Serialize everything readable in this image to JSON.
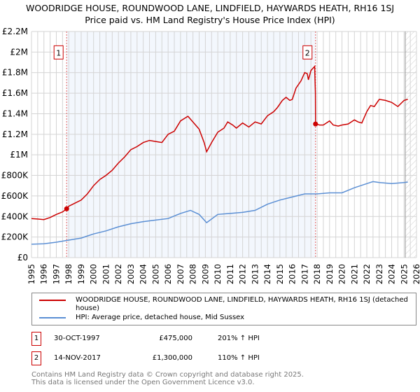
{
  "title": {
    "line1": "WOODRIDGE HOUSE, ROUNDWOOD LANE, LINDFIELD, HAYWARDS HEATH, RH16 1SJ",
    "line2": "Price paid vs. HM Land Registry's House Price Index (HPI)"
  },
  "chart_data": {
    "type": "line",
    "xlim": [
      1995,
      2026
    ],
    "ylim": [
      0,
      2200000
    ],
    "x_ticks": [
      "1995",
      "1996",
      "1997",
      "1998",
      "1999",
      "2000",
      "2001",
      "2002",
      "2003",
      "2004",
      "2005",
      "2006",
      "2007",
      "2008",
      "2009",
      "2010",
      "2011",
      "2012",
      "2013",
      "2014",
      "2015",
      "2016",
      "2017",
      "2018",
      "2019",
      "2020",
      "2021",
      "2022",
      "2023",
      "2024",
      "2025",
      "2026"
    ],
    "y_ticks": [
      {
        "v": 0,
        "label": "£0"
      },
      {
        "v": 200000,
        "label": "£200K"
      },
      {
        "v": 400000,
        "label": "£400K"
      },
      {
        "v": 600000,
        "label": "£600K"
      },
      {
        "v": 800000,
        "label": "£800K"
      },
      {
        "v": 1000000,
        "label": "£1M"
      },
      {
        "v": 1200000,
        "label": "£1.2M"
      },
      {
        "v": 1400000,
        "label": "£1.4M"
      },
      {
        "v": 1600000,
        "label": "£1.6M"
      },
      {
        "v": 1800000,
        "label": "£1.8M"
      },
      {
        "v": 2000000,
        "label": "£2M"
      },
      {
        "v": 2200000,
        "label": "£2.2M"
      }
    ],
    "shaded_range": [
      1997.83,
      2017.87
    ],
    "forecast_from": 2025.1,
    "series": [
      {
        "name": "WOODRIDGE HOUSE, ROUNDWOOD LANE, LINDFIELD, HAYWARDS HEATH, RH16 1SJ (detached house)",
        "color": "#cc0000",
        "x": [
          1995,
          1995.5,
          1996,
          1996.5,
          1997,
          1997.5,
          1997.83,
          1998,
          1998.5,
          1999,
          1999.5,
          2000,
          2000.5,
          2001,
          2001.5,
          2002,
          2002.5,
          2003,
          2003.5,
          2004,
          2004.5,
          2005,
          2005.5,
          2006,
          2006.5,
          2007,
          2007.6,
          2008,
          2008.5,
          2008.9,
          2009.1,
          2009.5,
          2010,
          2010.5,
          2010.8,
          2011.2,
          2011.5,
          2012,
          2012.5,
          2013,
          2013.5,
          2014,
          2014.5,
          2014.8,
          2015.2,
          2015.5,
          2015.8,
          2016,
          2016.3,
          2016.7,
          2017,
          2017.2,
          2017.3,
          2017.5,
          2017.8,
          2017.86,
          2017.87,
          2018.2,
          2018.5,
          2019,
          2019.3,
          2019.7,
          2020,
          2020.5,
          2021,
          2021.3,
          2021.6,
          2022,
          2022.3,
          2022.6,
          2023,
          2023.5,
          2024,
          2024.5,
          2025,
          2025.3
        ],
        "y": [
          380000,
          375000,
          370000,
          390000,
          420000,
          445000,
          475000,
          500000,
          530000,
          560000,
          620000,
          700000,
          760000,
          800000,
          850000,
          920000,
          980000,
          1050000,
          1080000,
          1120000,
          1140000,
          1130000,
          1120000,
          1200000,
          1230000,
          1330000,
          1375000,
          1320000,
          1250000,
          1120000,
          1030000,
          1120000,
          1220000,
          1260000,
          1320000,
          1290000,
          1260000,
          1310000,
          1270000,
          1320000,
          1300000,
          1380000,
          1420000,
          1460000,
          1530000,
          1560000,
          1530000,
          1540000,
          1650000,
          1720000,
          1800000,
          1790000,
          1730000,
          1820000,
          1860000,
          1600000,
          1300000,
          1290000,
          1290000,
          1330000,
          1290000,
          1280000,
          1290000,
          1300000,
          1340000,
          1320000,
          1310000,
          1420000,
          1480000,
          1470000,
          1540000,
          1530000,
          1510000,
          1470000,
          1530000,
          1540000
        ]
      },
      {
        "name": "HPI: Average price, detached house, Mid Sussex",
        "color": "#5b8fd4",
        "x": [
          1995,
          1996,
          1997,
          1998,
          1999,
          2000,
          2001,
          2002,
          2003,
          2004,
          2005,
          2006,
          2007,
          2007.8,
          2008.5,
          2009.1,
          2010,
          2011,
          2012,
          2013,
          2014,
          2015,
          2016,
          2017,
          2018,
          2019,
          2020,
          2021,
          2022,
          2022.5,
          2023,
          2024,
          2025,
          2025.3
        ],
        "y": [
          130000,
          135000,
          150000,
          170000,
          190000,
          230000,
          260000,
          300000,
          330000,
          350000,
          365000,
          380000,
          430000,
          460000,
          420000,
          340000,
          420000,
          430000,
          440000,
          460000,
          520000,
          560000,
          590000,
          620000,
          620000,
          630000,
          630000,
          680000,
          720000,
          740000,
          730000,
          720000,
          730000,
          735000
        ]
      }
    ],
    "markers": [
      {
        "label": "1",
        "x": 1997.83,
        "y": 475000
      },
      {
        "label": "2",
        "x": 2017.87,
        "y": 1300000
      }
    ]
  },
  "legend": {
    "items": [
      "WOODRIDGE HOUSE, ROUNDWOOD LANE, LINDFIELD, HAYWARDS HEATH, RH16 1SJ (detached house)",
      "HPI: Average price, detached house, Mid Sussex"
    ]
  },
  "transactions": [
    {
      "num": "1",
      "date": "30-OCT-1997",
      "price": "£475,000",
      "hpi": "201% ↑ HPI"
    },
    {
      "num": "2",
      "date": "14-NOV-2017",
      "price": "£1,300,000",
      "hpi": "110% ↑ HPI"
    }
  ],
  "footer": {
    "line1": "Contains HM Land Registry data © Crown copyright and database right 2025.",
    "line2": "This data is licensed under the Open Government Licence v3.0."
  }
}
